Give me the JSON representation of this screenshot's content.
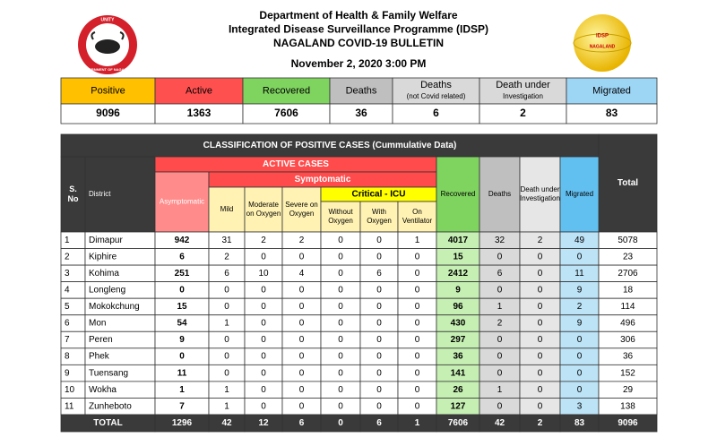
{
  "header": {
    "lines": [
      "Department of Health & Family Welfare",
      "Integrated Disease Surveillance Programme (IDSP)",
      "NAGALAND COVID-19 BULLETIN"
    ],
    "date": "November 2, 2020 3:00 PM"
  },
  "logos": {
    "left": [
      "UNITY",
      "GOVERNMENT OF NAGALAND"
    ],
    "right": [
      "IDSP",
      "NAGALAND"
    ]
  },
  "summary": {
    "headers": [
      "Positive",
      "Active",
      "Recovered",
      "Deaths",
      [
        "Deaths",
        "(not Covid related)"
      ],
      [
        "Death under",
        "Investigation"
      ],
      "Migrated"
    ],
    "values": [
      9096,
      1363,
      7606,
      36,
      6,
      2,
      83
    ]
  },
  "table": {
    "title": "CLASSIFICATION OF POSITIVE CASES (Cummulative Data)",
    "header": {
      "total": "Total",
      "active_cases": "ACTIVE CASES",
      "sno": [
        "S.",
        "No"
      ],
      "district": "District",
      "asymptomatic": "Asymptomatic",
      "symptomatic": "Symptomatic",
      "mild": "Mild",
      "moderate": [
        "Moderate",
        "on Oxygen"
      ],
      "severe": [
        "Severe on",
        "Oxygen"
      ],
      "critical": "Critical - ICU",
      "without_oxygen": [
        "Without",
        "Oxygen"
      ],
      "with_oxygen": [
        "With",
        "Oxygen"
      ],
      "on_ventilator": [
        "On",
        "Ventilator"
      ],
      "recovered": "Recovered",
      "deaths": "Deaths",
      "death_under_investigation": [
        "Death under",
        "Investigation"
      ],
      "migrated": "Migrated"
    },
    "rows": [
      [
        1,
        "Dimapur",
        942,
        31,
        2,
        2,
        0,
        0,
        1,
        4017,
        32,
        2,
        49,
        5078
      ],
      [
        2,
        "Kiphire",
        6,
        2,
        0,
        0,
        0,
        0,
        0,
        15,
        0,
        0,
        0,
        23
      ],
      [
        3,
        "Kohima",
        251,
        6,
        10,
        4,
        0,
        6,
        0,
        2412,
        6,
        0,
        11,
        2706
      ],
      [
        4,
        "Longleng",
        0,
        0,
        0,
        0,
        0,
        0,
        0,
        9,
        0,
        0,
        9,
        18
      ],
      [
        5,
        "Mokokchung",
        15,
        0,
        0,
        0,
        0,
        0,
        0,
        96,
        1,
        0,
        2,
        114
      ],
      [
        6,
        "Mon",
        54,
        1,
        0,
        0,
        0,
        0,
        0,
        430,
        2,
        0,
        9,
        496
      ],
      [
        7,
        "Peren",
        9,
        0,
        0,
        0,
        0,
        0,
        0,
        297,
        0,
        0,
        0,
        306
      ],
      [
        8,
        "Phek",
        0,
        0,
        0,
        0,
        0,
        0,
        0,
        36,
        0,
        0,
        0,
        36
      ],
      [
        9,
        "Tuensang",
        11,
        0,
        0,
        0,
        0,
        0,
        0,
        141,
        0,
        0,
        0,
        152
      ],
      [
        10,
        "Wokha",
        1,
        1,
        0,
        0,
        0,
        0,
        0,
        26,
        1,
        0,
        0,
        29
      ],
      [
        11,
        "Zunheboto",
        7,
        1,
        0,
        0,
        0,
        0,
        0,
        127,
        0,
        0,
        3,
        138
      ]
    ],
    "total_row": [
      "TOTAL",
      1296,
      42,
      12,
      6,
      0,
      6,
      1,
      7606,
      42,
      2,
      83,
      9096
    ]
  }
}
